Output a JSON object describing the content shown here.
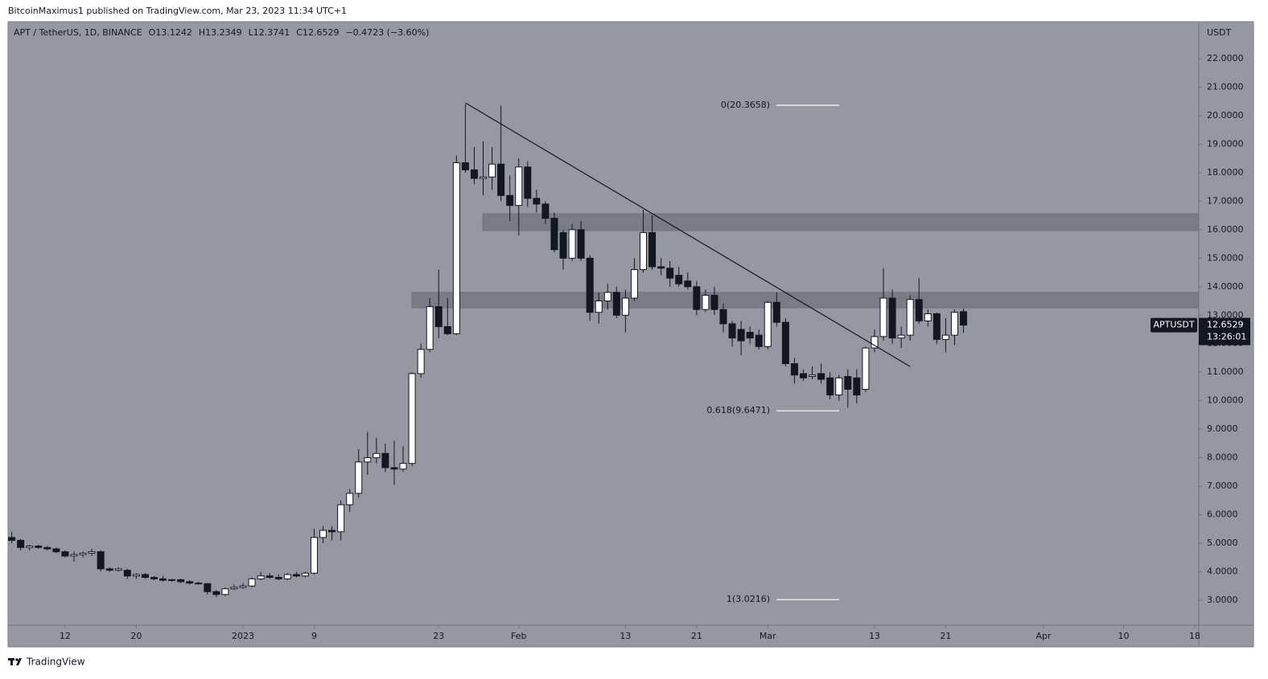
{
  "chart_data": {
    "type": "candlestick",
    "published": "BitcoinMaximus1 published on TradingView.com, Mar 23, 2023 11:34 UTC+1",
    "symbol": "APT / TetherUS, 1D, BINANCE",
    "quote": [
      {
        "label": "O",
        "value": 13.1242
      },
      {
        "label": "H",
        "value": 13.2349
      },
      {
        "label": "L",
        "value": 12.3741
      },
      {
        "label": "C",
        "value": 12.6529
      }
    ],
    "change": "−0.4723 (−3.60%)",
    "currency": "USDT",
    "ticker": "APTUSDT",
    "countdown": "13:26:01",
    "brand": "TradingView",
    "up_color": "#ffffff",
    "down_color": "#131722",
    "xlim": [
      "2022-12-05T14:00:00Z",
      "2023-04-18T11:00:00Z"
    ],
    "xticks": [
      {
        "value": "2022-12-12",
        "label": "12"
      },
      {
        "value": "2022-12-20",
        "label": "20"
      },
      {
        "value": "2023-01-01",
        "label": "2023"
      },
      {
        "value": "2023-01-09",
        "label": "9"
      },
      {
        "value": "2023-01-23",
        "label": "23"
      },
      {
        "value": "2023-02-01",
        "label": "Feb"
      },
      {
        "value": "2023-02-13",
        "label": "13"
      },
      {
        "value": "2023-02-21",
        "label": "21"
      },
      {
        "value": "2023-03-01",
        "label": "Mar"
      },
      {
        "value": "2023-03-13",
        "label": "13"
      },
      {
        "value": "2023-03-21",
        "label": "21"
      },
      {
        "value": "2023-04-01",
        "label": "Apr"
      },
      {
        "value": "2023-04-10",
        "label": "10"
      },
      {
        "value": "2023-04-18",
        "label": "18"
      }
    ],
    "ylim": [
      2.124,
      23.27
    ],
    "yticks": [
      {
        "value": 3,
        "label": "3.0000"
      },
      {
        "value": 4,
        "label": "4.0000"
      },
      {
        "value": 5,
        "label": "5.0000"
      },
      {
        "value": 6,
        "label": "6.0000"
      },
      {
        "value": 7,
        "label": "7.0000"
      },
      {
        "value": 8,
        "label": "8.0000"
      },
      {
        "value": 9,
        "label": "9.0000"
      },
      {
        "value": 10,
        "label": "10.0000"
      },
      {
        "value": 11,
        "label": "11.0000"
      },
      {
        "value": 12,
        "label": "12.0000"
      },
      {
        "value": 13,
        "label": "13.0000"
      },
      {
        "value": 14,
        "label": "14.0000"
      },
      {
        "value": 15,
        "label": "15.0000"
      },
      {
        "value": 16,
        "label": "16.0000"
      },
      {
        "value": 17,
        "label": "17.0000"
      },
      {
        "value": 18,
        "label": "18.0000"
      },
      {
        "value": 19,
        "label": "19.0000"
      },
      {
        "value": 20,
        "label": "20.0000"
      },
      {
        "value": 21,
        "label": "21.0000"
      },
      {
        "value": 22,
        "label": "22.0000"
      }
    ],
    "zones": [
      {
        "low": 15.97,
        "high": 16.56
      },
      {
        "low": 13.26,
        "high": 13.8
      }
    ],
    "trendline": {
      "x": [
        "2023-01-26",
        "2023-03-17"
      ],
      "y": [
        20.45,
        11.2
      ]
    },
    "fib_levels": [
      {
        "value": 20.3658,
        "label": "0(20.3658)"
      },
      {
        "value": 9.6471,
        "label": "0.618(9.6471)"
      },
      {
        "value": 3.0216,
        "label": "1(3.0216)"
      }
    ],
    "x": [
      "2022-12-06",
      "2022-12-07",
      "2022-12-08",
      "2022-12-09",
      "2022-12-10",
      "2022-12-11",
      "2022-12-12",
      "2022-12-13",
      "2022-12-14",
      "2022-12-15",
      "2022-12-16",
      "2022-12-17",
      "2022-12-18",
      "2022-12-19",
      "2022-12-20",
      "2022-12-21",
      "2022-12-22",
      "2022-12-23",
      "2022-12-24",
      "2022-12-25",
      "2022-12-26",
      "2022-12-27",
      "2022-12-28",
      "2022-12-29",
      "2022-12-30",
      "2022-12-31",
      "2023-01-01",
      "2023-01-02",
      "2023-01-03",
      "2023-01-04",
      "2023-01-05",
      "2023-01-06",
      "2023-01-07",
      "2023-01-08",
      "2023-01-09",
      "2023-01-10",
      "2023-01-11",
      "2023-01-12",
      "2023-01-13",
      "2023-01-14",
      "2023-01-15",
      "2023-01-16",
      "2023-01-17",
      "2023-01-18",
      "2023-01-19",
      "2023-01-20",
      "2023-01-21",
      "2023-01-22",
      "2023-01-23",
      "2023-01-24",
      "2023-01-25",
      "2023-01-26",
      "2023-01-27",
      "2023-01-28",
      "2023-01-29",
      "2023-01-30",
      "2023-01-31",
      "2023-02-01",
      "2023-02-02",
      "2023-02-03",
      "2023-02-04",
      "2023-02-05",
      "2023-02-06",
      "2023-02-07",
      "2023-02-08",
      "2023-02-09",
      "2023-02-10",
      "2023-02-11",
      "2023-02-12",
      "2023-02-13",
      "2023-02-14",
      "2023-02-15",
      "2023-02-16",
      "2023-02-17",
      "2023-02-18",
      "2023-02-19",
      "2023-02-20",
      "2023-02-21",
      "2023-02-22",
      "2023-02-23",
      "2023-02-24",
      "2023-02-25",
      "2023-02-26",
      "2023-02-27",
      "2023-02-28",
      "2023-03-01",
      "2023-03-02",
      "2023-03-03",
      "2023-03-04",
      "2023-03-05",
      "2023-03-06",
      "2023-03-07",
      "2023-03-08",
      "2023-03-09",
      "2023-03-10",
      "2023-03-11",
      "2023-03-12",
      "2023-03-13",
      "2023-03-14",
      "2023-03-15",
      "2023-03-16",
      "2023-03-17",
      "2023-03-18",
      "2023-03-19",
      "2023-03-20",
      "2023-03-21",
      "2023-03-22",
      "2023-03-23"
    ],
    "ohlc": [
      [
        5.2,
        5.4,
        5.0,
        5.1
      ],
      [
        5.1,
        5.15,
        4.75,
        4.85
      ],
      [
        4.85,
        4.95,
        4.75,
        4.9
      ],
      [
        4.9,
        4.95,
        4.8,
        4.85
      ],
      [
        4.85,
        4.9,
        4.75,
        4.8
      ],
      [
        4.8,
        4.85,
        4.65,
        4.7
      ],
      [
        4.7,
        4.75,
        4.5,
        4.55
      ],
      [
        4.55,
        4.7,
        4.35,
        4.6
      ],
      [
        4.6,
        4.7,
        4.5,
        4.65
      ],
      [
        4.65,
        4.8,
        4.55,
        4.7
      ],
      [
        4.7,
        4.75,
        4.0,
        4.1
      ],
      [
        4.1,
        4.15,
        4.0,
        4.05
      ],
      [
        4.05,
        4.15,
        4.0,
        4.1
      ],
      [
        4.05,
        4.1,
        3.75,
        3.85
      ],
      [
        3.85,
        3.95,
        3.75,
        3.9
      ],
      [
        3.9,
        3.95,
        3.75,
        3.8
      ],
      [
        3.8,
        3.85,
        3.7,
        3.75
      ],
      [
        3.75,
        3.85,
        3.65,
        3.7
      ],
      [
        3.7,
        3.75,
        3.65,
        3.72
      ],
      [
        3.72,
        3.75,
        3.6,
        3.65
      ],
      [
        3.65,
        3.7,
        3.55,
        3.6
      ],
      [
        3.6,
        3.65,
        3.55,
        3.58
      ],
      [
        3.58,
        3.6,
        3.2,
        3.3
      ],
      [
        3.3,
        3.35,
        3.1,
        3.2
      ],
      [
        3.2,
        3.45,
        3.15,
        3.4
      ],
      [
        3.4,
        3.55,
        3.35,
        3.45
      ],
      [
        3.45,
        3.6,
        3.4,
        3.5
      ],
      [
        3.5,
        3.8,
        3.45,
        3.75
      ],
      [
        3.75,
        4.0,
        3.7,
        3.85
      ],
      [
        3.85,
        3.95,
        3.75,
        3.8
      ],
      [
        3.8,
        3.9,
        3.7,
        3.75
      ],
      [
        3.75,
        3.95,
        3.7,
        3.9
      ],
      [
        3.9,
        4.0,
        3.8,
        3.85
      ],
      [
        3.85,
        4.0,
        3.8,
        3.95
      ],
      [
        3.95,
        5.5,
        3.9,
        5.2
      ],
      [
        5.2,
        5.6,
        5.0,
        5.45
      ],
      [
        5.45,
        5.6,
        5.1,
        5.4
      ],
      [
        5.4,
        6.5,
        5.1,
        6.35
      ],
      [
        6.35,
        6.9,
        6.1,
        6.75
      ],
      [
        6.75,
        8.3,
        6.6,
        7.85
      ],
      [
        7.85,
        8.9,
        7.4,
        8.0
      ],
      [
        8.0,
        8.7,
        7.8,
        8.15
      ],
      [
        8.15,
        8.5,
        7.5,
        7.65
      ],
      [
        7.65,
        8.6,
        7.05,
        7.6
      ],
      [
        7.6,
        8.4,
        7.5,
        7.8
      ],
      [
        7.8,
        11.0,
        7.7,
        10.95
      ],
      [
        10.95,
        12.0,
        10.8,
        11.8
      ],
      [
        11.8,
        13.6,
        11.7,
        13.3
      ],
      [
        13.3,
        14.6,
        12.2,
        12.6
      ],
      [
        12.6,
        13.6,
        12.3,
        12.35
      ],
      [
        12.35,
        18.6,
        12.3,
        18.35
      ],
      [
        18.35,
        20.4,
        18.0,
        18.1
      ],
      [
        18.1,
        18.9,
        17.6,
        17.8
      ],
      [
        17.8,
        19.1,
        17.2,
        17.85
      ],
      [
        17.85,
        18.9,
        17.4,
        18.3
      ],
      [
        18.3,
        20.35,
        17.0,
        17.2
      ],
      [
        17.2,
        17.9,
        16.3,
        16.85
      ],
      [
        16.85,
        18.5,
        15.8,
        18.2
      ],
      [
        18.2,
        18.4,
        16.8,
        17.1
      ],
      [
        17.1,
        17.4,
        16.6,
        16.9
      ],
      [
        16.9,
        17.0,
        16.2,
        16.4
      ],
      [
        16.4,
        16.6,
        15.2,
        15.3
      ],
      [
        15.9,
        16.0,
        14.6,
        15.0
      ],
      [
        15.0,
        16.2,
        14.9,
        16.0
      ],
      [
        16.0,
        16.3,
        14.9,
        15.0
      ],
      [
        15.0,
        15.1,
        12.8,
        13.1
      ],
      [
        13.1,
        13.8,
        12.7,
        13.5
      ],
      [
        13.5,
        14.1,
        13.2,
        13.8
      ],
      [
        13.8,
        14.0,
        12.9,
        13.0
      ],
      [
        13.0,
        13.9,
        12.4,
        13.6
      ],
      [
        13.6,
        15.0,
        13.5,
        14.6
      ],
      [
        14.6,
        16.7,
        14.5,
        15.9
      ],
      [
        15.9,
        16.5,
        14.6,
        14.7
      ],
      [
        14.7,
        15.0,
        14.4,
        14.65
      ],
      [
        14.65,
        14.9,
        14.0,
        14.3
      ],
      [
        14.4,
        14.7,
        14.0,
        14.1
      ],
      [
        14.2,
        14.5,
        13.9,
        14.0
      ],
      [
        14.0,
        14.2,
        13.0,
        13.2
      ],
      [
        13.2,
        13.9,
        13.1,
        13.7
      ],
      [
        13.7,
        14.0,
        13.0,
        13.2
      ],
      [
        13.2,
        13.4,
        12.4,
        12.7
      ],
      [
        12.7,
        12.8,
        11.9,
        12.2
      ],
      [
        12.5,
        12.8,
        11.6,
        12.1
      ],
      [
        12.4,
        12.6,
        12.0,
        12.2
      ],
      [
        12.3,
        12.5,
        11.8,
        11.9
      ],
      [
        11.9,
        13.5,
        11.8,
        13.45
      ],
      [
        13.45,
        13.8,
        12.6,
        12.75
      ],
      [
        12.75,
        12.9,
        11.2,
        11.3
      ],
      [
        11.3,
        11.5,
        10.6,
        10.9
      ],
      [
        10.95,
        11.1,
        10.7,
        10.8
      ],
      [
        10.85,
        11.2,
        10.75,
        10.9
      ],
      [
        10.95,
        11.3,
        10.6,
        10.75
      ],
      [
        10.8,
        11.0,
        10.05,
        10.2
      ],
      [
        10.2,
        10.9,
        10.0,
        10.8
      ],
      [
        10.85,
        11.1,
        9.75,
        10.4
      ],
      [
        10.8,
        11.1,
        9.9,
        10.2
      ],
      [
        10.4,
        11.9,
        10.3,
        11.85
      ],
      [
        11.85,
        12.5,
        11.7,
        12.25
      ],
      [
        12.25,
        14.65,
        12.1,
        13.6
      ],
      [
        13.6,
        13.9,
        12.0,
        12.2
      ],
      [
        12.2,
        12.6,
        11.85,
        12.3
      ],
      [
        12.3,
        13.7,
        12.1,
        13.55
      ],
      [
        13.55,
        14.3,
        12.7,
        12.8
      ],
      [
        12.8,
        13.2,
        12.6,
        13.05
      ],
      [
        13.05,
        13.1,
        12.0,
        12.15
      ],
      [
        12.15,
        12.9,
        11.7,
        12.3
      ],
      [
        12.3,
        13.2,
        11.95,
        13.1
      ],
      [
        13.1242,
        13.2349,
        12.3741,
        12.6529
      ]
    ]
  }
}
